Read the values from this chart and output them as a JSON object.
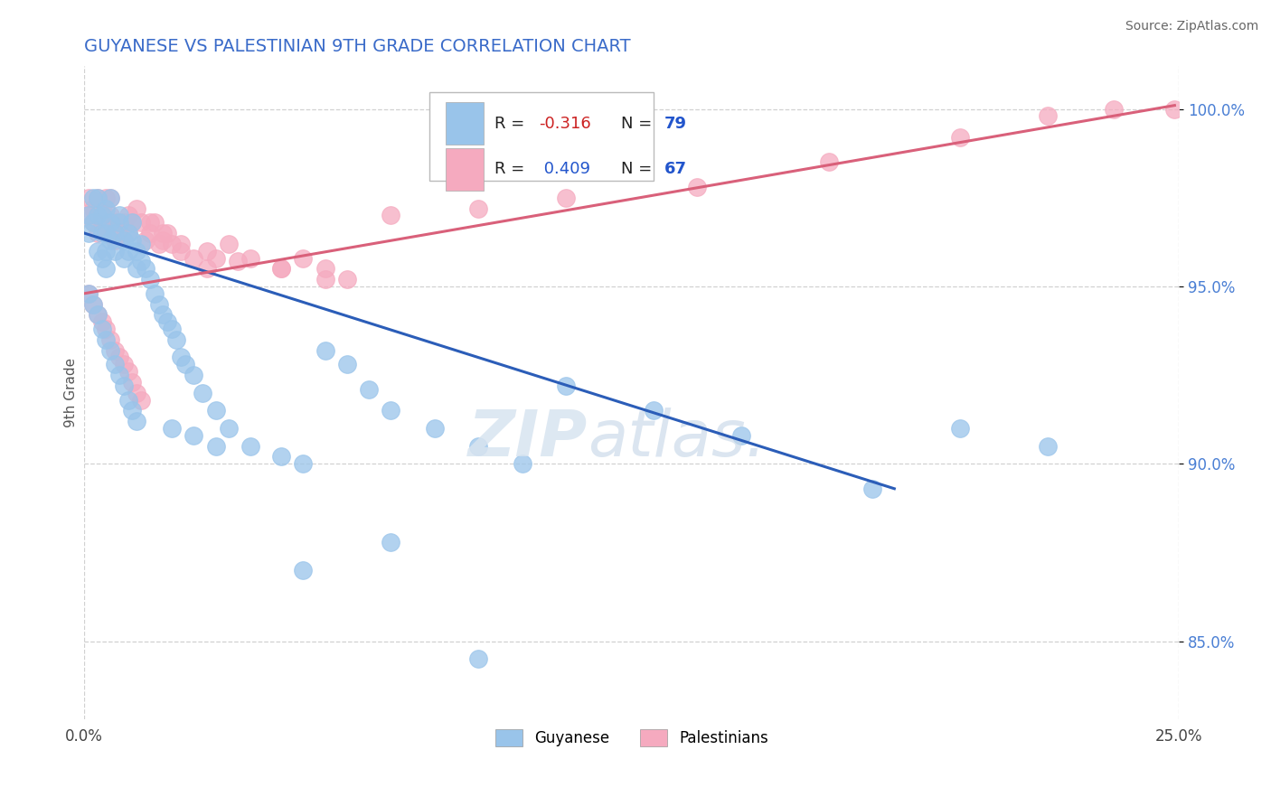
{
  "title": "GUYANESE VS PALESTINIAN 9TH GRADE CORRELATION CHART",
  "title_color": "#3a6bc9",
  "ylabel": "9th Grade",
  "source_text": "Source: ZipAtlas.com",
  "legend_blue_label": "Guyanese",
  "legend_pink_label": "Palestinians",
  "blue_color": "#99c4ea",
  "pink_color": "#f5aabf",
  "blue_line_color": "#2b5db8",
  "pink_line_color": "#d9607a",
  "background_color": "#ffffff",
  "ytick_color": "#4a7fd4",
  "xtick_color": "#444444",
  "grid_color": "#cccccc",
  "r_blue": -0.316,
  "n_blue": 79,
  "r_pink": 0.409,
  "n_pink": 67,
  "x_min": 0.0,
  "x_max": 0.25,
  "y_min": 0.828,
  "y_max": 1.012,
  "yticks": [
    0.85,
    0.9,
    0.95,
    1.0
  ],
  "ytick_labels": [
    "85.0%",
    "90.0%",
    "95.0%",
    "100.0%"
  ],
  "xticks": [
    0.0,
    0.25
  ],
  "xtick_labels": [
    "0.0%",
    "25.0%"
  ],
  "blue_line_x0": 0.0,
  "blue_line_y0": 0.965,
  "blue_line_x1": 0.185,
  "blue_line_y1": 0.893,
  "pink_line_x0": 0.0,
  "pink_line_y0": 0.948,
  "pink_line_x1": 0.249,
  "pink_line_y1": 1.001,
  "guyanese_x": [
    0.001,
    0.001,
    0.002,
    0.002,
    0.003,
    0.003,
    0.003,
    0.004,
    0.004,
    0.004,
    0.005,
    0.005,
    0.005,
    0.005,
    0.006,
    0.006,
    0.006,
    0.007,
    0.007,
    0.008,
    0.008,
    0.009,
    0.009,
    0.01,
    0.01,
    0.011,
    0.011,
    0.012,
    0.012,
    0.013,
    0.013,
    0.014,
    0.015,
    0.016,
    0.017,
    0.018,
    0.019,
    0.02,
    0.021,
    0.022,
    0.023,
    0.025,
    0.027,
    0.03,
    0.033,
    0.038,
    0.045,
    0.05,
    0.055,
    0.06,
    0.065,
    0.07,
    0.08,
    0.09,
    0.1,
    0.11,
    0.13,
    0.15,
    0.18,
    0.2,
    0.22,
    0.001,
    0.002,
    0.003,
    0.004,
    0.005,
    0.006,
    0.007,
    0.008,
    0.009,
    0.01,
    0.011,
    0.012,
    0.02,
    0.025,
    0.03,
    0.05,
    0.07,
    0.09
  ],
  "guyanese_y": [
    0.965,
    0.97,
    0.968,
    0.975,
    0.97,
    0.96,
    0.975,
    0.965,
    0.97,
    0.958,
    0.972,
    0.965,
    0.96,
    0.955,
    0.968,
    0.975,
    0.963,
    0.965,
    0.96,
    0.968,
    0.97,
    0.963,
    0.958,
    0.965,
    0.96,
    0.963,
    0.968,
    0.96,
    0.955,
    0.962,
    0.957,
    0.955,
    0.952,
    0.948,
    0.945,
    0.942,
    0.94,
    0.938,
    0.935,
    0.93,
    0.928,
    0.925,
    0.92,
    0.915,
    0.91,
    0.905,
    0.902,
    0.9,
    0.932,
    0.928,
    0.921,
    0.915,
    0.91,
    0.905,
    0.9,
    0.922,
    0.915,
    0.908,
    0.893,
    0.91,
    0.905,
    0.948,
    0.945,
    0.942,
    0.938,
    0.935,
    0.932,
    0.928,
    0.925,
    0.922,
    0.918,
    0.915,
    0.912,
    0.91,
    0.908,
    0.905,
    0.87,
    0.878,
    0.845
  ],
  "palestinians_x": [
    0.001,
    0.001,
    0.002,
    0.002,
    0.003,
    0.003,
    0.004,
    0.004,
    0.005,
    0.005,
    0.006,
    0.006,
    0.007,
    0.007,
    0.008,
    0.009,
    0.01,
    0.01,
    0.011,
    0.012,
    0.013,
    0.014,
    0.015,
    0.016,
    0.017,
    0.018,
    0.019,
    0.02,
    0.022,
    0.025,
    0.028,
    0.03,
    0.033,
    0.038,
    0.045,
    0.05,
    0.055,
    0.06,
    0.001,
    0.002,
    0.003,
    0.004,
    0.005,
    0.006,
    0.007,
    0.008,
    0.009,
    0.01,
    0.011,
    0.012,
    0.013,
    0.015,
    0.018,
    0.022,
    0.028,
    0.035,
    0.045,
    0.055,
    0.07,
    0.09,
    0.11,
    0.14,
    0.17,
    0.2,
    0.22,
    0.235,
    0.249
  ],
  "palestinians_y": [
    0.97,
    0.975,
    0.968,
    0.972,
    0.975,
    0.965,
    0.972,
    0.968,
    0.975,
    0.965,
    0.97,
    0.975,
    0.968,
    0.963,
    0.965,
    0.968,
    0.965,
    0.97,
    0.968,
    0.972,
    0.968,
    0.963,
    0.965,
    0.968,
    0.962,
    0.963,
    0.965,
    0.962,
    0.96,
    0.958,
    0.955,
    0.958,
    0.962,
    0.958,
    0.955,
    0.958,
    0.955,
    0.952,
    0.948,
    0.945,
    0.942,
    0.94,
    0.938,
    0.935,
    0.932,
    0.93,
    0.928,
    0.926,
    0.923,
    0.92,
    0.918,
    0.968,
    0.965,
    0.962,
    0.96,
    0.957,
    0.955,
    0.952,
    0.97,
    0.972,
    0.975,
    0.978,
    0.985,
    0.992,
    0.998,
    1.0,
    1.0
  ]
}
